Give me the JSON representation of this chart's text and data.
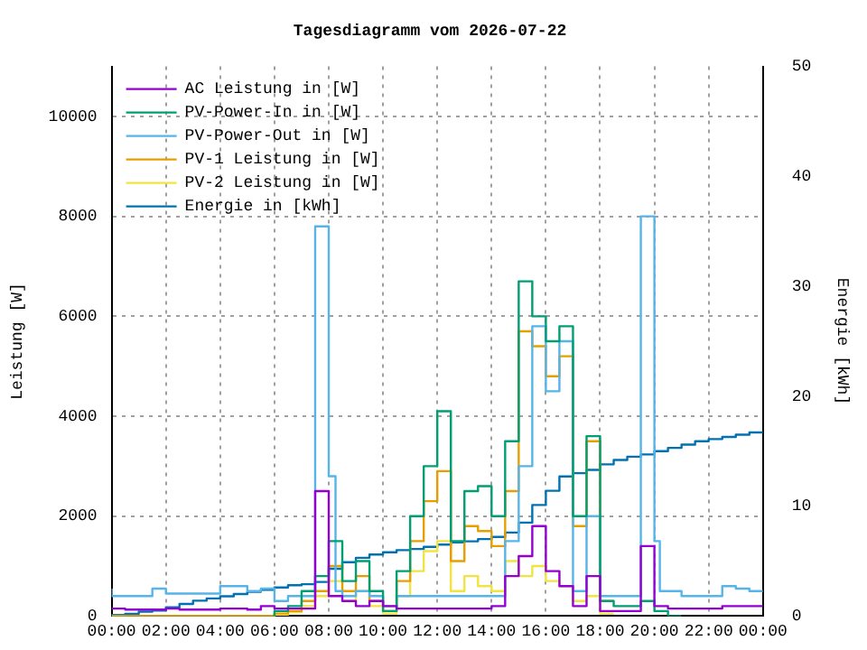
{
  "chart_data": {
    "type": "step",
    "title": "Tagesdiagramm vom 2026-07-22",
    "ylabel": "Leistung [W]",
    "y2label": "Energie [kWh]",
    "xlim": [
      0,
      24
    ],
    "xticks": [
      {
        "value": 0,
        "label": "00:00"
      },
      {
        "value": 2,
        "label": "02:00"
      },
      {
        "value": 4,
        "label": "04:00"
      },
      {
        "value": 6,
        "label": "06:00"
      },
      {
        "value": 8,
        "label": "08:00"
      },
      {
        "value": 10,
        "label": "10:00"
      },
      {
        "value": 12,
        "label": "12:00"
      },
      {
        "value": 14,
        "label": "14:00"
      },
      {
        "value": 16,
        "label": "16:00"
      },
      {
        "value": 18,
        "label": "18:00"
      },
      {
        "value": 20,
        "label": "20:00"
      },
      {
        "value": 22,
        "label": "22:00"
      },
      {
        "value": 24,
        "label": "00:00"
      }
    ],
    "ylim": [
      0,
      11000
    ],
    "yticks": [
      0,
      2000,
      4000,
      6000,
      8000,
      10000
    ],
    "y2lim": [
      0,
      50
    ],
    "y2ticks": [
      0,
      10,
      20,
      30,
      40,
      50
    ],
    "grid": true,
    "legend": "top left",
    "series": [
      {
        "name": "AC Leistung in [W]",
        "color": "#9400d3",
        "x": [
          0,
          0.5,
          1,
          1.5,
          2,
          2.5,
          3,
          3.5,
          4,
          4.5,
          5,
          5.5,
          6,
          6.5,
          7,
          7.5,
          8,
          8.5,
          9,
          9.5,
          10,
          10.5,
          11,
          11.5,
          12,
          12.5,
          13,
          13.5,
          14,
          14.5,
          15,
          15.5,
          16,
          16.5,
          17,
          17.5,
          18,
          18.5,
          19,
          19.5,
          20,
          20.5,
          21,
          21.5,
          22,
          22.5,
          23,
          23.5,
          24
        ],
        "values": [
          150,
          150,
          130,
          130,
          130,
          150,
          130,
          130,
          130,
          150,
          150,
          130,
          200,
          150,
          150,
          150,
          2500,
          400,
          300,
          200,
          300,
          200,
          150,
          150,
          150,
          150,
          150,
          150,
          150,
          200,
          800,
          1200,
          1800,
          900,
          600,
          200,
          800,
          100,
          100,
          100,
          1400,
          200,
          150,
          150,
          150,
          150,
          200,
          200,
          200
        ]
      },
      {
        "name": "PV-Power-In in [W]",
        "color": "#009e73",
        "x": [
          6,
          6.5,
          7,
          7.5,
          8,
          8.5,
          9,
          9.5,
          10,
          10.5,
          11,
          11.5,
          12,
          12.5,
          13,
          13.5,
          14,
          14.5,
          15,
          15.5,
          16,
          16.5,
          17,
          17.5,
          18,
          18.5,
          19,
          19.5,
          20,
          20.5,
          21
        ],
        "values": [
          0,
          100,
          200,
          500,
          800,
          1500,
          700,
          1100,
          500,
          100,
          900,
          2000,
          3000,
          4100,
          1500,
          2500,
          2600,
          2000,
          3500,
          6700,
          6000,
          5500,
          5800,
          2000,
          3600,
          300,
          200,
          200,
          300,
          100,
          0
        ]
      },
      {
        "name": "PV-Power-Out in [W]",
        "color": "#56b4e9",
        "x": [
          0,
          0.5,
          1,
          1.5,
          2,
          2.5,
          3,
          3.5,
          4,
          4.5,
          5,
          5.5,
          6,
          6.5,
          7,
          7.5,
          8,
          8.25,
          8.5,
          9,
          9.5,
          10,
          10.5,
          11,
          11.5,
          12,
          12.5,
          13,
          13.5,
          14,
          14.5,
          15,
          15.5,
          16,
          16.5,
          17,
          17.5,
          18,
          18.5,
          19,
          19.5,
          20,
          20.2,
          20.5,
          21,
          21.5,
          22,
          22.5,
          23,
          23.5,
          24
        ],
        "values": [
          550,
          400,
          400,
          400,
          550,
          450,
          450,
          450,
          450,
          600,
          600,
          500,
          550,
          300,
          400,
          400,
          7800,
          2800,
          500,
          400,
          500,
          400,
          200,
          400,
          400,
          400,
          400,
          400,
          400,
          400,
          400,
          1500,
          3000,
          5800,
          4500,
          5500,
          500,
          2000,
          400,
          400,
          400,
          8000,
          1500,
          500,
          500,
          400,
          400,
          400,
          600,
          550,
          500
        ]
      },
      {
        "name": "PV-1 Leistung in [W]",
        "color": "#e69f00",
        "x": [
          0,
          6,
          6.5,
          7,
          7.5,
          8,
          8.5,
          9,
          9.5,
          10,
          10.5,
          11,
          11.5,
          12,
          12.5,
          13,
          13.5,
          14,
          14.5,
          15,
          15.5,
          16,
          16.5,
          17,
          17.5,
          18,
          18.5
        ],
        "values": [
          0,
          0,
          50,
          100,
          300,
          500,
          1000,
          500,
          800,
          300,
          100,
          700,
          1500,
          2300,
          2900,
          1100,
          1800,
          1700,
          1400,
          2500,
          5700,
          5400,
          4800,
          5200,
          1800,
          3500,
          300
        ]
      },
      {
        "name": "PV-2 Leistung in [W]",
        "color": "#f0e442",
        "x": [
          0,
          6,
          6.5,
          7,
          7.5,
          8,
          8.5,
          9,
          9.5,
          10,
          10.5,
          11,
          11.5,
          12,
          12.5,
          13,
          13.5,
          14,
          14.5,
          15,
          15.5,
          16,
          16.5,
          17,
          17.5,
          18,
          18.5
        ],
        "values": [
          0,
          0,
          30,
          80,
          200,
          400,
          700,
          300,
          500,
          200,
          50,
          400,
          900,
          1300,
          1500,
          500,
          800,
          600,
          500,
          1100,
          800,
          1000,
          700,
          600,
          300,
          400,
          50
        ]
      },
      {
        "name": "Energie in [kWh]",
        "color": "#0072b2",
        "axis": "y2",
        "x": [
          0,
          0.5,
          1,
          1.5,
          2,
          2.5,
          3,
          3.5,
          4,
          4.5,
          5,
          5.5,
          6,
          6.5,
          7,
          7.5,
          8,
          8.5,
          9,
          9.5,
          10,
          10.5,
          11,
          11.5,
          12,
          12.5,
          13,
          13.5,
          14,
          14.5,
          15,
          15.5,
          16,
          16.5,
          17,
          17.5,
          18,
          18.5,
          19,
          19.5,
          20,
          20.5,
          21,
          21.5,
          22,
          22.5,
          23,
          23.5,
          24
        ],
        "values": [
          0,
          0.1,
          0.2,
          0.4,
          0.5,
          0.8,
          1.1,
          1.4,
          1.6,
          1.8,
          2.0,
          2.2,
          2.4,
          2.6,
          2.8,
          2.9,
          3.1,
          4.3,
          4.9,
          5.3,
          5.6,
          5.8,
          6.0,
          6.1,
          6.3,
          6.5,
          6.7,
          6.8,
          7.0,
          7.2,
          7.6,
          8.5,
          10.1,
          11.4,
          12.7,
          13.0,
          13.3,
          13.8,
          14.2,
          14.5,
          14.7,
          15.0,
          15.3,
          15.6,
          15.9,
          16.1,
          16.3,
          16.5,
          16.7
        ]
      }
    ]
  }
}
